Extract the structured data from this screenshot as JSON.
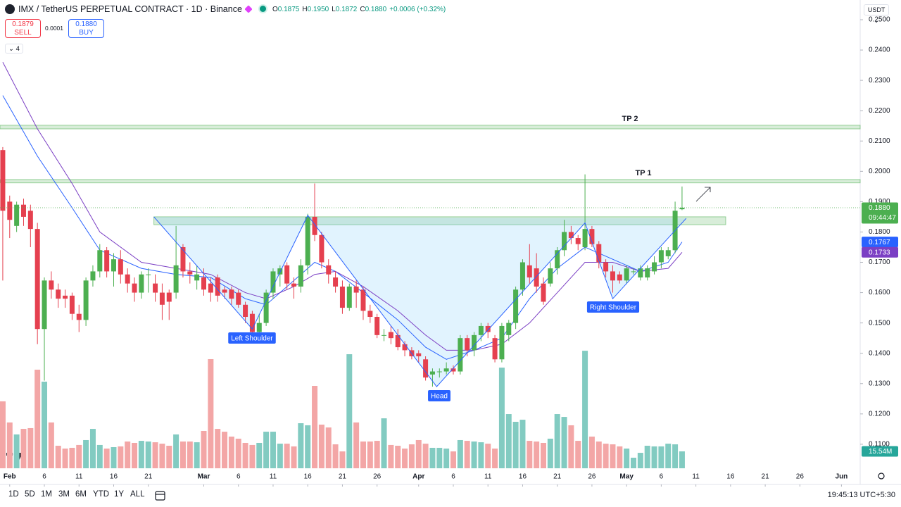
{
  "header": {
    "symbol": "IMX / TetherUS PERPETUAL CONTRACT · 1D · Binance",
    "ohlc": [
      {
        "key": "O",
        "value": "0.1875"
      },
      {
        "key": "H",
        "value": "0.1950"
      },
      {
        "key": "L",
        "value": "0.1872"
      },
      {
        "key": "C",
        "value": "0.1880"
      }
    ],
    "change": "+0.0006 (+0.32%)",
    "sell": {
      "price": "0.1879",
      "label": "SELL"
    },
    "spread": "0.0001",
    "buy": {
      "price": "0.1880",
      "label": "BUY"
    },
    "indicators": "4",
    "currency": "USDT"
  },
  "chart_data": {
    "type": "candlestick",
    "up_color": "#4caf50",
    "down_color": "#e5404f",
    "volume_up_color": "#82cbc1",
    "volume_down_color": "#f3a6a6",
    "open": [
      0.207,
      0.19,
      0.182,
      0.189,
      0.187,
      0.181,
      0.148,
      0.164,
      0.161,
      0.159,
      0.159,
      0.153,
      0.151,
      0.164,
      0.167,
      0.174,
      0.167,
      0.171,
      0.166,
      0.163,
      0.16,
      0.166,
      0.163,
      0.16,
      0.16,
      0.16,
      0.175,
      0.167,
      0.164,
      0.165,
      0.163,
      0.165,
      0.161,
      0.161,
      0.16,
      0.156,
      0.153,
      0.147,
      0.15,
      0.16,
      0.166,
      0.169,
      0.163,
      0.162,
      0.169,
      0.185,
      0.179,
      0.169,
      0.165,
      0.162,
      0.155,
      0.162,
      0.161,
      0.154,
      0.152,
      0.146,
      0.147,
      0.146,
      0.143,
      0.141,
      0.14,
      0.138,
      0.133,
      0.134,
      0.134,
      0.135,
      0.134,
      0.145,
      0.141,
      0.146,
      0.149,
      0.145,
      0.138,
      0.146,
      0.15,
      0.161,
      0.169,
      0.168,
      0.163,
      0.163,
      0.168,
      0.174,
      0.18,
      0.178,
      0.175,
      0.181,
      0.176,
      0.17,
      0.167,
      0.166,
      0.164,
      0.167,
      0.165,
      0.165,
      0.167,
      0.17,
      0.172,
      0.174,
      0.1875
    ],
    "high": [
      0.208,
      0.192,
      0.19,
      0.191,
      0.189,
      0.183,
      0.165,
      0.167,
      0.163,
      0.161,
      0.16,
      0.156,
      0.165,
      0.169,
      0.176,
      0.175,
      0.173,
      0.174,
      0.168,
      0.165,
      0.167,
      0.168,
      0.166,
      0.163,
      0.161,
      0.182,
      0.176,
      0.17,
      0.169,
      0.168,
      0.165,
      0.166,
      0.162,
      0.162,
      0.161,
      0.157,
      0.154,
      0.153,
      0.161,
      0.168,
      0.169,
      0.17,
      0.165,
      0.171,
      0.186,
      0.196,
      0.18,
      0.171,
      0.167,
      0.164,
      0.163,
      0.164,
      0.162,
      0.156,
      0.153,
      0.148,
      0.149,
      0.148,
      0.144,
      0.142,
      0.141,
      0.139,
      0.135,
      0.135,
      0.137,
      0.136,
      0.146,
      0.146,
      0.147,
      0.15,
      0.15,
      0.146,
      0.15,
      0.151,
      0.162,
      0.171,
      0.176,
      0.173,
      0.165,
      0.17,
      0.175,
      0.184,
      0.182,
      0.179,
      0.199,
      0.182,
      0.177,
      0.171,
      0.169,
      0.167,
      0.169,
      0.168,
      0.169,
      0.169,
      0.172,
      0.175,
      0.175,
      0.19,
      0.195
    ],
    "low": [
      0.164,
      0.178,
      0.18,
      0.182,
      0.175,
      0.143,
      0.131,
      0.158,
      0.155,
      0.155,
      0.151,
      0.147,
      0.149,
      0.162,
      0.165,
      0.165,
      0.162,
      0.163,
      0.16,
      0.157,
      0.158,
      0.16,
      0.157,
      0.151,
      0.151,
      0.158,
      0.165,
      0.163,
      0.161,
      0.159,
      0.157,
      0.157,
      0.158,
      0.156,
      0.155,
      0.15,
      0.146,
      0.146,
      0.149,
      0.158,
      0.162,
      0.161,
      0.158,
      0.16,
      0.166,
      0.177,
      0.168,
      0.163,
      0.16,
      0.153,
      0.154,
      0.155,
      0.151,
      0.15,
      0.145,
      0.144,
      0.143,
      0.141,
      0.139,
      0.138,
      0.137,
      0.131,
      0.129,
      0.132,
      0.133,
      0.133,
      0.133,
      0.139,
      0.139,
      0.144,
      0.145,
      0.137,
      0.137,
      0.144,
      0.148,
      0.159,
      0.163,
      0.16,
      0.156,
      0.162,
      0.166,
      0.172,
      0.176,
      0.174,
      0.174,
      0.175,
      0.168,
      0.165,
      0.16,
      0.163,
      0.163,
      0.166,
      0.164,
      0.164,
      0.166,
      0.168,
      0.171,
      0.173,
      0.1872
    ],
    "close": [
      0.187,
      0.184,
      0.189,
      0.185,
      0.181,
      0.148,
      0.164,
      0.161,
      0.158,
      0.158,
      0.153,
      0.151,
      0.164,
      0.167,
      0.174,
      0.167,
      0.171,
      0.166,
      0.163,
      0.16,
      0.166,
      0.166,
      0.16,
      0.156,
      0.157,
      0.169,
      0.167,
      0.166,
      0.166,
      0.161,
      0.16,
      0.159,
      0.16,
      0.158,
      0.156,
      0.152,
      0.147,
      0.15,
      0.16,
      0.167,
      0.168,
      0.163,
      0.162,
      0.169,
      0.185,
      0.179,
      0.17,
      0.166,
      0.162,
      0.155,
      0.162,
      0.16,
      0.154,
      0.152,
      0.146,
      0.146,
      0.145,
      0.142,
      0.141,
      0.139,
      0.139,
      0.132,
      0.134,
      0.134,
      0.135,
      0.134,
      0.145,
      0.141,
      0.146,
      0.149,
      0.147,
      0.138,
      0.149,
      0.15,
      0.161,
      0.17,
      0.165,
      0.162,
      0.157,
      0.168,
      0.174,
      0.18,
      0.178,
      0.176,
      0.181,
      0.176,
      0.17,
      0.167,
      0.164,
      0.164,
      0.168,
      0.167,
      0.168,
      0.168,
      0.17,
      0.174,
      0.174,
      0.187,
      0.188
    ],
    "volume": [
      61.5,
      42.1,
      31.1,
      36.2,
      36.9,
      90.6,
      79.6,
      42.1,
      20.7,
      18.1,
      18.8,
      21.4,
      25.9,
      36.2,
      21.4,
      18.1,
      19.4,
      20.1,
      24.6,
      23.3,
      25.2,
      24.6,
      23.9,
      22.6,
      20.7,
      31.1,
      24.6,
      24.6,
      23.9,
      34.3,
      100.3,
      36.2,
      33.6,
      29.1,
      27.2,
      23.3,
      21.4,
      23.3,
      33.6,
      33.6,
      22.6,
      22.6,
      20.1,
      41.4,
      39.5,
      75.7,
      40.1,
      37.5,
      22.0,
      15.5,
      104.8,
      42.1,
      24.6,
      24.6,
      25.2,
      45.9,
      21.4,
      20.7,
      18.1,
      22.0,
      25.9,
      22.6,
      18.8,
      18.8,
      18.1,
      15.5,
      25.9,
      25.2,
      24.6,
      23.9,
      22.6,
      18.1,
      92.5,
      49.8,
      42.7,
      44.6,
      25.2,
      24.6,
      23.3,
      27.2,
      49.8,
      47.2,
      39.5,
      25.2,
      108.0,
      29.1,
      24.6,
      22.6,
      22.0,
      20.1,
      18.1,
      9.7,
      14.2,
      20.7,
      20.1,
      20.1,
      22.6,
      22.0,
      15.54
    ],
    "lines": [
      {
        "color": "#2962ff",
        "x": [
          0,
          5,
          10,
          14,
          20,
          25,
          30,
          35,
          38,
          42,
          45,
          48,
          52,
          57,
          61,
          64,
          68,
          72,
          76,
          80,
          84,
          88,
          92,
          96,
          98
        ],
        "values": [
          0.225,
          0.205,
          0.188,
          0.174,
          0.168,
          0.166,
          0.165,
          0.158,
          0.156,
          0.164,
          0.17,
          0.167,
          0.16,
          0.151,
          0.142,
          0.138,
          0.141,
          0.145,
          0.158,
          0.168,
          0.175,
          0.171,
          0.167,
          0.17,
          0.1767
        ]
      },
      {
        "color": "#7b3fc4",
        "x": [
          0,
          5,
          10,
          14,
          20,
          25,
          30,
          35,
          38,
          42,
          45,
          48,
          52,
          57,
          61,
          64,
          68,
          72,
          76,
          80,
          84,
          88,
          92,
          96,
          98
        ],
        "values": [
          0.236,
          0.214,
          0.196,
          0.18,
          0.17,
          0.168,
          0.166,
          0.16,
          0.158,
          0.162,
          0.166,
          0.167,
          0.162,
          0.154,
          0.146,
          0.141,
          0.141,
          0.143,
          0.15,
          0.16,
          0.17,
          0.17,
          0.167,
          0.168,
          0.1733
        ]
      }
    ],
    "pattern": {
      "color": "#2962ff",
      "x": [
        21.8,
        36,
        44,
        62.6,
        84,
        88,
        98.6
      ],
      "values": [
        0.185,
        0.148,
        0.1855,
        0.129,
        0.183,
        0.158,
        0.1845
      ],
      "labels": [
        "Left Shoulder",
        "Head",
        "Right Shoulder"
      ]
    },
    "zones": [
      {
        "label": "TP 2",
        "range": [
          0.214,
          0.2152
        ]
      },
      {
        "label": "TP 1",
        "range": [
          0.1962,
          0.1973
        ]
      },
      {
        "range": [
          0.1824,
          0.185
        ],
        "x": [
          21.8,
          104.3
        ]
      }
    ],
    "price_tags": [
      {
        "value": 0.188,
        "label": "0.1880",
        "sublabel": "09:44:47",
        "color": "#4caf50"
      },
      {
        "value": 0.1767,
        "label": "0.1767",
        "color": "#2962ff"
      },
      {
        "value": 0.1733,
        "label": "0.1733",
        "color": "#7b3fc4"
      },
      {
        "value": 15.54,
        "label": "15.54M",
        "color": "#26a69a",
        "axis": "volume"
      }
    ],
    "xlim": [
      -0.4,
      123.7
    ],
    "ylim": [
      0.0972,
      0.2565
    ],
    "volume_ylim": [
      0,
      110
    ],
    "grid": false,
    "xticks": [
      {
        "value": 1,
        "label": "Feb"
      },
      6,
      11,
      16,
      21,
      {
        "value": 29,
        "label": "Mar"
      },
      {
        "value": 34,
        "label": "6"
      },
      {
        "value": 39,
        "label": "11"
      },
      {
        "value": 44,
        "label": "16"
      },
      {
        "value": 49,
        "label": "21"
      },
      {
        "value": 54,
        "label": "26"
      },
      {
        "value": 60,
        "label": "Apr"
      },
      {
        "value": 65,
        "label": "6"
      },
      {
        "value": 70,
        "label": "11"
      },
      {
        "value": 75,
        "label": "16"
      },
      {
        "value": 80,
        "label": "21"
      },
      {
        "value": 85,
        "label": "26"
      },
      {
        "value": 90,
        "label": "May"
      },
      {
        "value": 95,
        "label": "6"
      },
      {
        "value": 100,
        "label": "11"
      },
      {
        "value": 105,
        "label": "16"
      },
      {
        "value": 110,
        "label": "21"
      },
      {
        "value": 115,
        "label": "26"
      },
      {
        "value": 121,
        "label": "Jun"
      }
    ],
    "yticks": [
      {
        "value": 0.25,
        "label": "0.2500"
      },
      {
        "value": 0.24,
        "label": "0.2400"
      },
      {
        "value": 0.23,
        "label": "0.2300"
      },
      {
        "value": 0.22,
        "label": "0.2200"
      },
      {
        "value": 0.21,
        "label": "0.2100"
      },
      {
        "value": 0.2,
        "label": "0.2000"
      },
      {
        "value": 0.19,
        "label": "0.1900"
      },
      {
        "value": 0.18,
        "label": "0.1800"
      },
      {
        "value": 0.17,
        "label": "0.1700"
      },
      {
        "value": 0.16,
        "label": "0.1600"
      },
      {
        "value": 0.15,
        "label": "0.1500"
      },
      {
        "value": 0.14,
        "label": "0.1400"
      },
      {
        "value": 0.13,
        "label": "0.1300"
      },
      {
        "value": 0.12,
        "label": "0.1200"
      },
      {
        "value": 0.11,
        "label": "0.1100"
      }
    ]
  },
  "toolbar": {
    "ranges": [
      "1D",
      "5D",
      "1M",
      "3M",
      "6M",
      "YTD",
      "1Y",
      "ALL"
    ],
    "clock": "19:45:13 UTC+5:30"
  }
}
